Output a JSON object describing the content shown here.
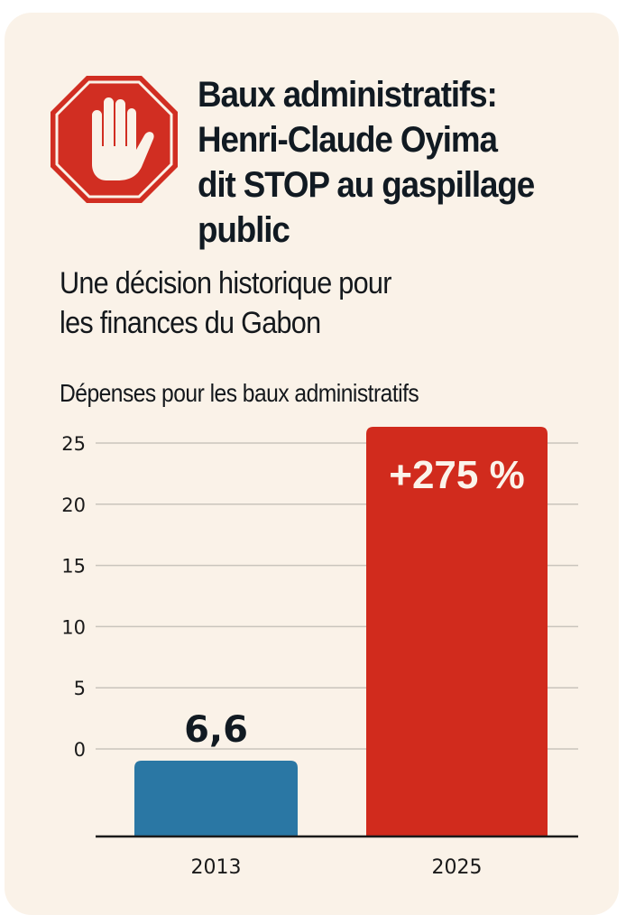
{
  "header": {
    "title": "Baux administratifs:\nHenri-Claude Oyima\ndit STOP au gaspillage\npublic",
    "subtitle": "Une décision historique pour\nles finances du Gabon",
    "icon": "stop-hand-icon"
  },
  "colors": {
    "card_background": "#faf2e8",
    "stop_red": "#d12e22",
    "bar_2013": "#2a77a4",
    "bar_2025": "#d12b1d",
    "text": "#111a22",
    "grid": "#c9c4bc",
    "axis": "#1a1a1a"
  },
  "chart_data": {
    "type": "bar",
    "title": "Dépenses pour les baux administratifs",
    "xlabel": "",
    "ylabel": "",
    "categories": [
      "2013",
      "2025"
    ],
    "values": [
      6.6,
      24.75
    ],
    "data_labels": [
      "6,6",
      "+275 %"
    ],
    "yticks": [
      0,
      5,
      10,
      15,
      20,
      25
    ],
    "ytick_labels": [
      "0",
      "5",
      "10",
      "15",
      "20",
      "25"
    ],
    "ylim": [
      0,
      25
    ],
    "grid": true,
    "legend": "none",
    "bar_colors": [
      "#2a77a4",
      "#d12b1d"
    ]
  }
}
